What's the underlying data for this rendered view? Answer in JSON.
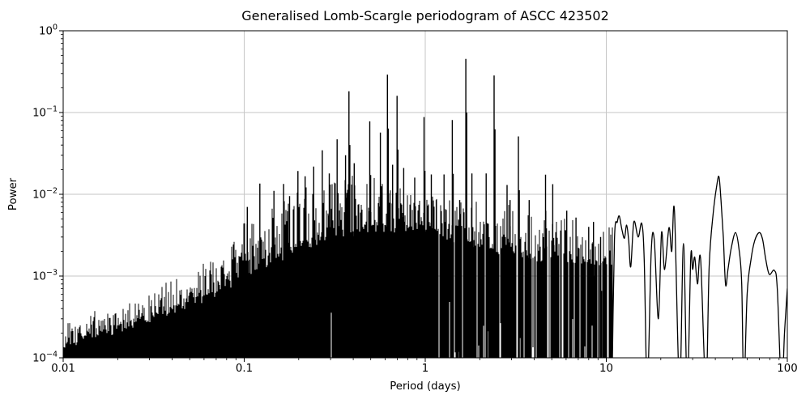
{
  "chart_data": {
    "type": "line",
    "title": "Generalised Lomb-Scargle periodogram of ASCC 423502",
    "xlabel": "Period (days)",
    "ylabel": "Power",
    "xscale": "log",
    "yscale": "log",
    "xlim": [
      0.01,
      100
    ],
    "ylim": [
      0.0001,
      1
    ],
    "grid": true,
    "legend": "none",
    "line_color": "#000000",
    "grid_color": "#c6c6c6",
    "background_color": "#ffffff",
    "x_tick_labels": [
      "0.01",
      "0.1",
      "1",
      "10",
      "100"
    ],
    "y_tick_base": "10",
    "y_tick_exponents": [
      "0",
      "−1",
      "−2",
      "−3",
      "−4"
    ],
    "major_peaks": [
      [
        0.104,
        0.007
      ],
      [
        0.122,
        0.0135
      ],
      [
        0.146,
        0.011
      ],
      [
        0.165,
        0.0134
      ],
      [
        0.178,
        0.0095
      ],
      [
        0.198,
        0.0193
      ],
      [
        0.217,
        0.0166
      ],
      [
        0.242,
        0.0218
      ],
      [
        0.27,
        0.0346
      ],
      [
        0.295,
        0.018
      ],
      [
        0.326,
        0.047
      ],
      [
        0.363,
        0.03
      ],
      [
        0.379,
        0.182
      ],
      [
        0.405,
        0.024
      ],
      [
        0.494,
        0.078
      ],
      [
        0.565,
        0.057
      ],
      [
        0.618,
        0.29
      ],
      [
        0.66,
        0.023
      ],
      [
        0.699,
        0.16
      ],
      [
        0.76,
        0.021
      ],
      [
        0.875,
        0.016
      ],
      [
        0.985,
        0.088
      ],
      [
        1.08,
        0.0175
      ],
      [
        1.15,
        0.0085
      ],
      [
        1.27,
        0.0175
      ],
      [
        1.41,
        0.081
      ],
      [
        1.55,
        0.0085
      ],
      [
        1.675,
        0.453
      ],
      [
        1.81,
        0.018
      ],
      [
        2.17,
        0.018
      ],
      [
        2.4,
        0.284
      ],
      [
        2.83,
        0.013
      ],
      [
        2.94,
        0.0085
      ],
      [
        3.27,
        0.051
      ],
      [
        3.75,
        0.0085
      ],
      [
        4.62,
        0.0174
      ],
      [
        5.06,
        0.0133
      ],
      [
        6.05,
        0.0063
      ],
      [
        6.8,
        0.0052
      ],
      [
        8.0,
        0.004
      ],
      [
        8.5,
        0.0046
      ],
      [
        9.3,
        0.003
      ]
    ],
    "noise_mass_envelope": [
      [
        0.01,
        0.000155
      ],
      [
        0.02,
        0.00026
      ],
      [
        0.05,
        0.0005
      ],
      [
        0.1,
        0.00115
      ],
      [
        0.2,
        0.0026
      ],
      [
        0.35,
        0.0038
      ],
      [
        0.6,
        0.0045
      ],
      [
        1.0,
        0.0042
      ],
      [
        1.6,
        0.0032
      ],
      [
        2.5,
        0.0024
      ],
      [
        4.0,
        0.002
      ],
      [
        7.0,
        0.0018
      ],
      [
        10.7,
        0.0015
      ]
    ],
    "noise_spike_envelope": [
      [
        0.01,
        0.00028
      ],
      [
        0.02,
        0.0005
      ],
      [
        0.035,
        0.0008
      ],
      [
        0.06,
        0.0016
      ],
      [
        0.1,
        0.0045
      ],
      [
        0.15,
        0.008
      ],
      [
        0.22,
        0.013
      ],
      [
        0.35,
        0.019
      ],
      [
        0.55,
        0.016
      ],
      [
        0.8,
        0.013
      ],
      [
        1.2,
        0.011
      ],
      [
        2.0,
        0.0085
      ],
      [
        3.5,
        0.007
      ],
      [
        6.0,
        0.006
      ],
      [
        10.7,
        0.0045
      ]
    ],
    "smooth_curve": [
      [
        10.75,
        4e-05
      ],
      [
        11.1,
        0.0028
      ],
      [
        11.5,
        0.0046
      ],
      [
        11.8,
        0.0054
      ],
      [
        12.2,
        0.0037
      ],
      [
        12.6,
        0.0029
      ],
      [
        12.95,
        0.0042
      ],
      [
        13.3,
        0.0027
      ],
      [
        13.65,
        0.0013
      ],
      [
        14.2,
        0.0046
      ],
      [
        15.0,
        0.003
      ],
      [
        15.7,
        0.0044
      ],
      [
        16.2,
        0.0016
      ],
      [
        16.85,
        4e-05
      ],
      [
        17.7,
        0.0019
      ],
      [
        18.4,
        0.0028
      ],
      [
        19.4,
        0.0003
      ],
      [
        20.2,
        0.0034
      ],
      [
        21.0,
        0.0012
      ],
      [
        22.2,
        0.0039
      ],
      [
        23.0,
        0.002
      ],
      [
        23.8,
        0.0062
      ],
      [
        25.4,
        4e-05
      ],
      [
        26.7,
        0.0025
      ],
      [
        28.0,
        4e-05
      ],
      [
        29.3,
        0.0017
      ],
      [
        30.0,
        0.0012
      ],
      [
        30.8,
        0.0017
      ],
      [
        31.9,
        0.0008
      ],
      [
        33.2,
        0.0016
      ],
      [
        35.5,
        4e-05
      ],
      [
        37.0,
        0.0013
      ],
      [
        39.0,
        0.006
      ],
      [
        41.0,
        0.014
      ],
      [
        42.0,
        0.016
      ],
      [
        43.0,
        0.0085
      ],
      [
        44.3,
        0.003
      ],
      [
        45.6,
        0.00078
      ],
      [
        47.0,
        0.0012
      ],
      [
        49.0,
        0.0022
      ],
      [
        51.7,
        0.0034
      ],
      [
        54.0,
        0.0022
      ],
      [
        56.0,
        0.0008
      ],
      [
        57.5,
        4e-05
      ],
      [
        60.0,
        0.0006
      ],
      [
        63.0,
        0.0016
      ],
      [
        66.0,
        0.0027
      ],
      [
        70.0,
        0.0034
      ],
      [
        73.0,
        0.0028
      ],
      [
        76.0,
        0.0016
      ],
      [
        79.5,
        0.00105
      ],
      [
        84.8,
        0.00117
      ],
      [
        88.0,
        0.0007
      ],
      [
        92.9,
        4e-05
      ],
      [
        96.5,
        0.0002
      ],
      [
        100.0,
        0.0007
      ]
    ]
  }
}
